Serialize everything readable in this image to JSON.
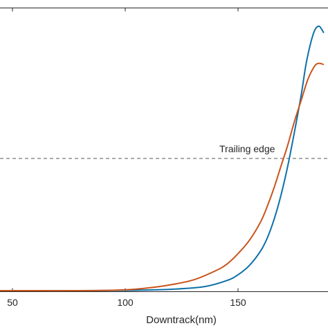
{
  "chart_data": {
    "type": "line",
    "title": "",
    "xlabel": "Downtrack(nm)",
    "ylabel": "",
    "xlim": [
      40,
      188
    ],
    "ylim": [
      0,
      1.03
    ],
    "grid": false,
    "x_ticks": [
      50,
      100,
      150
    ],
    "reference_line": {
      "y": 0.5,
      "style": "dashed",
      "color": "#555555",
      "label": "Trailing edge"
    },
    "series": [
      {
        "color": "#0d6fa8",
        "x": [
          40,
          60,
          80,
          100,
          120,
          135,
          145,
          150,
          155,
          160,
          163,
          166,
          169,
          172,
          175,
          178,
          180,
          182,
          184,
          186,
          188
        ],
        "y": [
          0.0,
          0.0,
          0.0,
          0.001,
          0.005,
          0.015,
          0.038,
          0.06,
          0.095,
          0.15,
          0.2,
          0.27,
          0.36,
          0.47,
          0.6,
          0.74,
          0.85,
          0.93,
          0.985,
          1.0,
          0.975
        ]
      },
      {
        "color": "#c8531a",
        "x": [
          40,
          60,
          80,
          100,
          110,
          120,
          130,
          140,
          145,
          150,
          155,
          160,
          163,
          166,
          169,
          172,
          175,
          178,
          181,
          184,
          186,
          188
        ],
        "y": [
          0.0,
          0.0,
          0.0,
          0.003,
          0.01,
          0.022,
          0.04,
          0.075,
          0.1,
          0.14,
          0.19,
          0.26,
          0.32,
          0.39,
          0.47,
          0.55,
          0.64,
          0.72,
          0.8,
          0.85,
          0.86,
          0.855
        ]
      }
    ]
  }
}
